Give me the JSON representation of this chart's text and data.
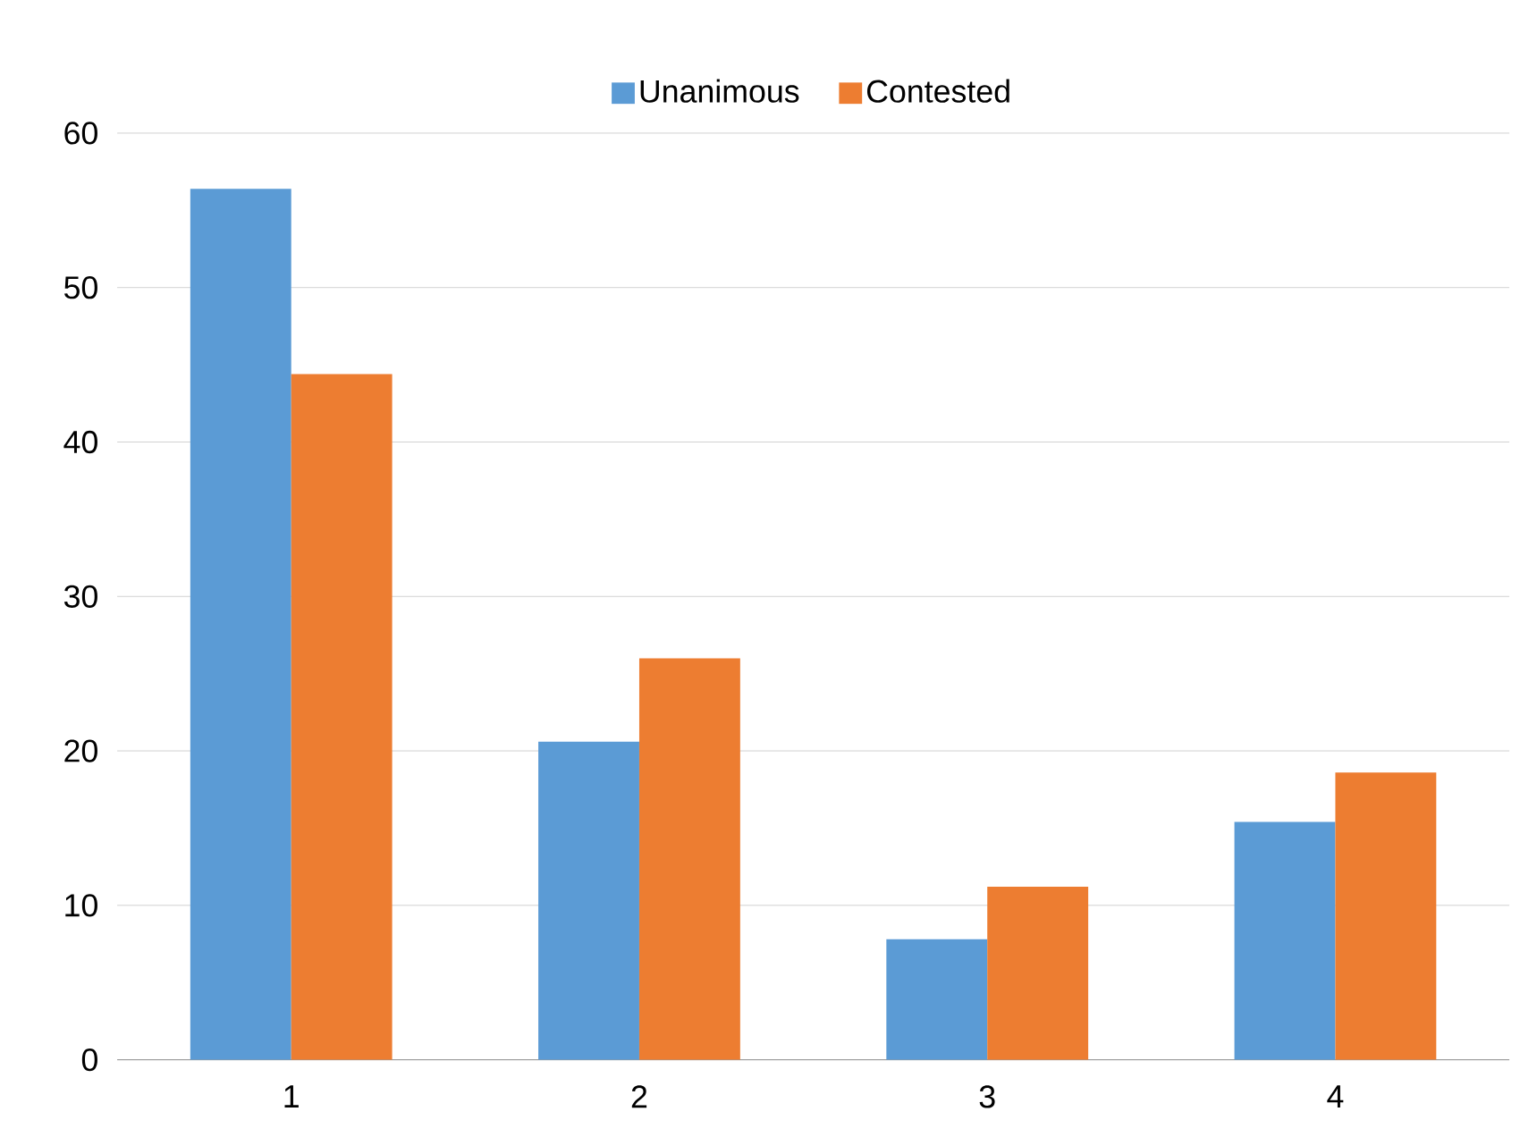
{
  "chart_data": {
    "type": "bar",
    "categories": [
      "1",
      "2",
      "3",
      "4"
    ],
    "series": [
      {
        "name": "Unanimous",
        "color": "#5b9bd5",
        "values": [
          56.4,
          20.6,
          7.8,
          15.4
        ]
      },
      {
        "name": "Contested",
        "color": "#ed7d31",
        "values": [
          44.4,
          26.0,
          11.2,
          18.6
        ]
      }
    ],
    "ylim": [
      0,
      60
    ],
    "yticks": [
      0,
      10,
      20,
      30,
      40,
      50,
      60
    ],
    "grid": "y",
    "legend": "top"
  }
}
